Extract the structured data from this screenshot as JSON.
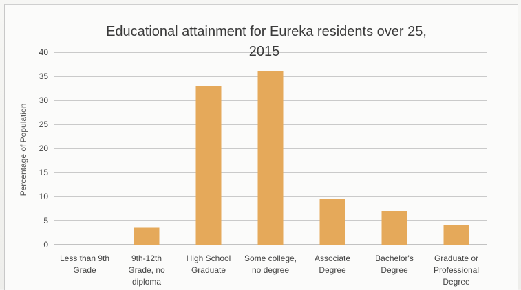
{
  "chart_data": {
    "type": "bar",
    "title_lines": [
      "Educational attainment for Eureka residents over 25,",
      "2015"
    ],
    "ylabel": "Percentage of Population",
    "xlabel": "",
    "ylim": [
      0,
      40
    ],
    "yticks": [
      0,
      5,
      10,
      15,
      20,
      25,
      30,
      35,
      40
    ],
    "grid": true,
    "legend": "none",
    "bar_color": "#e5a95a",
    "categories": [
      [
        "Less than 9th",
        "Grade"
      ],
      [
        "9th-12th",
        "Grade, no",
        "diploma"
      ],
      [
        "High School",
        "Graduate"
      ],
      [
        "Some college,",
        "no degree"
      ],
      [
        "Associate",
        "Degree"
      ],
      [
        "Bachelor's",
        "Degree"
      ],
      [
        "Graduate or",
        "Professional",
        "Degree"
      ]
    ],
    "values": [
      0,
      3.5,
      33,
      36,
      9.5,
      7,
      4
    ]
  }
}
